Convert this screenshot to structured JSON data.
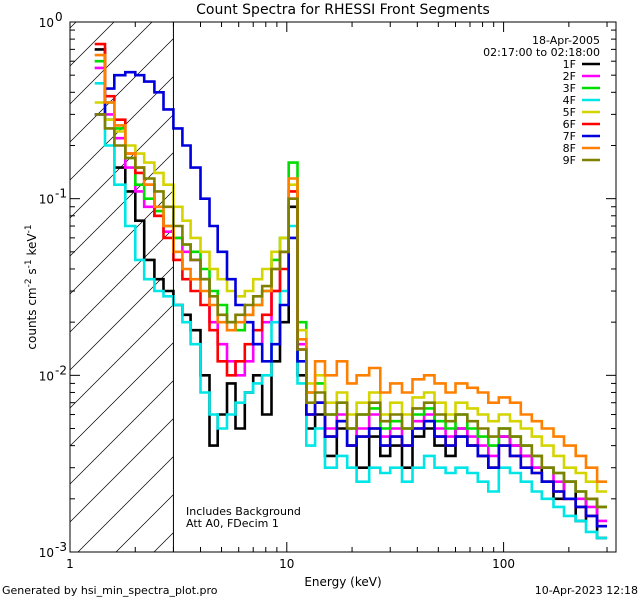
{
  "chart_data": {
    "type": "line",
    "title": "Count Spectra for RHESSI Front Segments",
    "xlabel": "Energy (keV)",
    "ylabel": "counts cm-2 s-1 keV-1",
    "xscale": "log",
    "yscale": "log",
    "xlim": [
      1,
      330
    ],
    "ylim": [
      0.001,
      1.0
    ],
    "x_ticks": [
      {
        "value": 1,
        "label": "1"
      },
      {
        "value": 10,
        "label": "10"
      },
      {
        "value": 100,
        "label": "100"
      }
    ],
    "y_ticks": [
      {
        "value": 1,
        "label": "10",
        "exp": "0"
      },
      {
        "value": 0.1,
        "label": "10",
        "exp": "-1"
      },
      {
        "value": 0.01,
        "label": "10",
        "exp": "-2"
      },
      {
        "value": 0.001,
        "label": "10",
        "exp": "-3"
      }
    ],
    "date": "18-Apr-2005",
    "time_range": "02:17:00 to 02:18:00",
    "annotations": [
      "Includes Background",
      "Att A0, FDecim 1"
    ],
    "hatch_region_keV": [
      1,
      3
    ],
    "footer_left": "Generated by hsi_min_spectra_plot.pro",
    "footer_right": "10-Apr-2023 12:18",
    "series": [
      {
        "name": "1F",
        "color": "#000000",
        "edges": [
          1.3,
          1.45,
          1.6,
          1.8,
          2.0,
          2.2,
          2.45,
          2.7,
          3.0,
          3.3,
          3.6,
          4.0,
          4.4,
          4.8,
          5.3,
          5.8,
          6.4,
          7.0,
          7.7,
          8.5,
          9.3,
          10.2,
          11.2,
          12.3,
          13.5,
          15,
          17,
          19,
          21,
          24,
          27,
          30,
          34,
          38,
          43,
          48,
          54,
          60,
          68,
          76,
          85,
          95,
          107,
          120,
          135,
          150,
          170,
          190,
          215,
          240,
          270,
          300
        ],
        "values": [
          0.7,
          0.28,
          0.15,
          0.11,
          0.075,
          0.045,
          0.035,
          0.03,
          0.025,
          0.022,
          0.018,
          0.01,
          0.004,
          0.006,
          0.009,
          0.005,
          0.008,
          0.01,
          0.006,
          0.012,
          0.02,
          0.09,
          0.01,
          0.005,
          0.006,
          0.0035,
          0.005,
          0.004,
          0.003,
          0.0045,
          0.0035,
          0.004,
          0.003,
          0.0045,
          0.005,
          0.004,
          0.0035,
          0.005,
          0.004,
          0.0035,
          0.003,
          0.0045,
          0.004,
          0.0035,
          0.003,
          0.0025,
          0.002,
          0.0025,
          0.0015,
          0.002,
          0.0012
        ]
      },
      {
        "name": "2F",
        "color": "#ff00ff",
        "edges": [
          1.3,
          1.45,
          1.6,
          1.8,
          2.0,
          2.2,
          2.45,
          2.7,
          3.0,
          3.3,
          3.6,
          4.0,
          4.4,
          4.8,
          5.3,
          5.8,
          6.4,
          7.0,
          7.7,
          8.5,
          9.3,
          10.2,
          11.2,
          12.3,
          13.5,
          15,
          17,
          19,
          21,
          24,
          27,
          30,
          34,
          38,
          43,
          48,
          54,
          60,
          68,
          76,
          85,
          95,
          107,
          120,
          135,
          150,
          170,
          190,
          215,
          240,
          270,
          300
        ],
        "values": [
          0.55,
          0.3,
          0.22,
          0.15,
          0.11,
          0.09,
          0.08,
          0.065,
          0.06,
          0.05,
          0.045,
          0.035,
          0.02,
          0.015,
          0.012,
          0.01,
          0.012,
          0.015,
          0.02,
          0.03,
          0.05,
          0.1,
          0.015,
          0.006,
          0.007,
          0.005,
          0.006,
          0.004,
          0.005,
          0.006,
          0.0045,
          0.005,
          0.004,
          0.0055,
          0.006,
          0.005,
          0.0045,
          0.005,
          0.0045,
          0.004,
          0.0035,
          0.0045,
          0.004,
          0.0035,
          0.003,
          0.003,
          0.0025,
          0.002,
          0.002,
          0.0018,
          0.0015
        ]
      },
      {
        "name": "3F",
        "color": "#00dd00",
        "edges": [
          1.3,
          1.45,
          1.6,
          1.8,
          2.0,
          2.2,
          2.45,
          2.7,
          3.0,
          3.3,
          3.6,
          4.0,
          4.4,
          4.8,
          5.3,
          5.8,
          6.4,
          7.0,
          7.7,
          8.5,
          9.3,
          10.2,
          11.2,
          12.3,
          13.5,
          15,
          17,
          19,
          21,
          24,
          27,
          30,
          34,
          38,
          43,
          48,
          54,
          60,
          68,
          76,
          85,
          95,
          107,
          120,
          135,
          150,
          170,
          190,
          215,
          240,
          270,
          300
        ],
        "values": [
          0.6,
          0.35,
          0.25,
          0.17,
          0.12,
          0.1,
          0.085,
          0.07,
          0.06,
          0.055,
          0.05,
          0.04,
          0.03,
          0.025,
          0.02,
          0.018,
          0.022,
          0.025,
          0.03,
          0.045,
          0.06,
          0.16,
          0.02,
          0.008,
          0.009,
          0.006,
          0.007,
          0.005,
          0.006,
          0.0065,
          0.005,
          0.0055,
          0.005,
          0.006,
          0.0065,
          0.0055,
          0.005,
          0.006,
          0.005,
          0.0045,
          0.004,
          0.005,
          0.0045,
          0.004,
          0.0035,
          0.003,
          0.0028,
          0.0025,
          0.0022,
          0.002,
          0.0018
        ]
      },
      {
        "name": "4F",
        "color": "#00e5e5",
        "edges": [
          1.3,
          1.45,
          1.6,
          1.8,
          2.0,
          2.2,
          2.45,
          2.7,
          3.0,
          3.3,
          3.6,
          4.0,
          4.4,
          4.8,
          5.3,
          5.8,
          6.4,
          7.0,
          7.7,
          8.5,
          9.3,
          10.2,
          11.2,
          12.3,
          13.5,
          15,
          17,
          19,
          21,
          24,
          27,
          30,
          34,
          38,
          43,
          48,
          54,
          60,
          68,
          76,
          85,
          95,
          107,
          120,
          135,
          150,
          170,
          190,
          215,
          240,
          270,
          300
        ],
        "values": [
          0.45,
          0.2,
          0.12,
          0.07,
          0.045,
          0.035,
          0.03,
          0.028,
          0.025,
          0.02,
          0.015,
          0.008,
          0.006,
          0.005,
          0.006,
          0.007,
          0.008,
          0.009,
          0.01,
          0.02,
          0.03,
          0.07,
          0.009,
          0.004,
          0.005,
          0.003,
          0.0035,
          0.003,
          0.0025,
          0.003,
          0.0028,
          0.003,
          0.0025,
          0.003,
          0.0035,
          0.003,
          0.0028,
          0.003,
          0.0028,
          0.0025,
          0.0022,
          0.003,
          0.0028,
          0.0025,
          0.0022,
          0.002,
          0.0018,
          0.0016,
          0.0015,
          0.0013,
          0.0012
        ]
      },
      {
        "name": "5F",
        "color": "#d4d400",
        "edges": [
          1.3,
          1.45,
          1.6,
          1.8,
          2.0,
          2.2,
          2.45,
          2.7,
          3.0,
          3.3,
          3.6,
          4.0,
          4.4,
          4.8,
          5.3,
          5.8,
          6.4,
          7.0,
          7.7,
          8.5,
          9.3,
          10.2,
          11.2,
          12.3,
          13.5,
          15,
          17,
          19,
          21,
          24,
          27,
          30,
          34,
          38,
          43,
          48,
          54,
          60,
          68,
          76,
          85,
          95,
          107,
          120,
          135,
          150,
          170,
          190,
          215,
          240,
          270,
          300
        ],
        "values": [
          0.35,
          0.28,
          0.24,
          0.2,
          0.18,
          0.16,
          0.14,
          0.12,
          0.09,
          0.075,
          0.06,
          0.05,
          0.04,
          0.035,
          0.03,
          0.028,
          0.03,
          0.035,
          0.04,
          0.05,
          0.06,
          0.12,
          0.018,
          0.009,
          0.01,
          0.007,
          0.008,
          0.006,
          0.007,
          0.008,
          0.006,
          0.007,
          0.006,
          0.0075,
          0.008,
          0.007,
          0.006,
          0.007,
          0.0065,
          0.006,
          0.0055,
          0.006,
          0.0055,
          0.005,
          0.0045,
          0.004,
          0.0035,
          0.003,
          0.0028,
          0.0025,
          0.0022
        ]
      },
      {
        "name": "6F",
        "color": "#ff0000",
        "edges": [
          1.3,
          1.45,
          1.6,
          1.8,
          2.0,
          2.2,
          2.45,
          2.7,
          3.0,
          3.3,
          3.6,
          4.0,
          4.4,
          4.8,
          5.3,
          5.8,
          6.4,
          7.0,
          7.7,
          8.5,
          9.3,
          10.2,
          11.2,
          12.3,
          13.5,
          15,
          17,
          19,
          21,
          24,
          27,
          30,
          34,
          38,
          43,
          48,
          54,
          60,
          68,
          76,
          85,
          95,
          107,
          120,
          135,
          150,
          170,
          190,
          215,
          240,
          270,
          300
        ],
        "values": [
          0.75,
          0.38,
          0.28,
          0.18,
          0.14,
          0.12,
          0.08,
          0.06,
          0.045,
          0.035,
          0.03,
          0.025,
          0.018,
          0.012,
          0.01,
          0.012,
          0.015,
          0.018,
          0.022,
          0.03,
          0.04,
          0.11,
          0.014,
          0.006,
          0.007,
          0.0045,
          0.0055,
          0.004,
          0.0045,
          0.005,
          0.004,
          0.0045,
          0.004,
          0.005,
          0.0055,
          0.0045,
          0.004,
          0.0045,
          0.004,
          0.0035,
          0.003,
          0.004,
          0.0035,
          0.003,
          0.0028,
          0.0025,
          0.0022,
          0.002,
          0.0018,
          0.0016,
          0.0014
        ]
      },
      {
        "name": "7F",
        "color": "#0000dd",
        "edges": [
          1.3,
          1.45,
          1.6,
          1.8,
          2.0,
          2.2,
          2.45,
          2.7,
          3.0,
          3.3,
          3.6,
          4.0,
          4.4,
          4.8,
          5.3,
          5.8,
          6.4,
          7.0,
          7.7,
          8.5,
          9.3,
          10.2,
          11.2,
          12.3,
          13.5,
          15,
          17,
          19,
          21,
          24,
          27,
          30,
          34,
          38,
          43,
          48,
          54,
          60,
          68,
          76,
          85,
          95,
          107,
          120,
          135,
          150,
          170,
          190,
          215,
          240,
          270,
          300
        ],
        "values": [
          0.3,
          0.42,
          0.5,
          0.52,
          0.5,
          0.46,
          0.4,
          0.32,
          0.25,
          0.2,
          0.15,
          0.1,
          0.07,
          0.05,
          0.035,
          0.025,
          0.02,
          0.015,
          0.012,
          0.015,
          0.025,
          0.06,
          0.012,
          0.006,
          0.007,
          0.0045,
          0.0055,
          0.004,
          0.0045,
          0.005,
          0.004,
          0.0045,
          0.004,
          0.005,
          0.0055,
          0.0045,
          0.004,
          0.0045,
          0.004,
          0.0035,
          0.003,
          0.004,
          0.0035,
          0.003,
          0.0028,
          0.0025,
          0.0022,
          0.002,
          0.0018,
          0.0016,
          0.0014
        ]
      },
      {
        "name": "8F",
        "color": "#ff8000",
        "edges": [
          1.3,
          1.45,
          1.6,
          1.8,
          2.0,
          2.2,
          2.45,
          2.7,
          3.0,
          3.3,
          3.6,
          4.0,
          4.4,
          4.8,
          5.3,
          5.8,
          6.4,
          7.0,
          7.7,
          8.5,
          9.3,
          10.2,
          11.2,
          12.3,
          13.5,
          15,
          17,
          19,
          21,
          24,
          27,
          30,
          34,
          38,
          43,
          48,
          54,
          60,
          68,
          76,
          85,
          95,
          107,
          120,
          135,
          150,
          170,
          190,
          215,
          240,
          270,
          300
        ],
        "values": [
          0.65,
          0.35,
          0.26,
          0.18,
          0.15,
          0.12,
          0.09,
          0.07,
          0.05,
          0.04,
          0.035,
          0.03,
          0.025,
          0.02,
          0.018,
          0.02,
          0.022,
          0.025,
          0.03,
          0.04,
          0.05,
          0.13,
          0.016,
          0.008,
          0.012,
          0.01,
          0.012,
          0.009,
          0.01,
          0.011,
          0.008,
          0.009,
          0.008,
          0.0095,
          0.01,
          0.009,
          0.008,
          0.009,
          0.0085,
          0.008,
          0.007,
          0.0075,
          0.007,
          0.006,
          0.0055,
          0.005,
          0.0045,
          0.004,
          0.0035,
          0.003,
          0.0025
        ]
      },
      {
        "name": "9F",
        "color": "#808000",
        "edges": [
          1.3,
          1.45,
          1.6,
          1.8,
          2.0,
          2.2,
          2.45,
          2.7,
          3.0,
          3.3,
          3.6,
          4.0,
          4.4,
          4.8,
          5.3,
          5.8,
          6.4,
          7.0,
          7.7,
          8.5,
          9.3,
          10.2,
          11.2,
          12.3,
          13.5,
          15,
          17,
          19,
          21,
          24,
          27,
          30,
          34,
          38,
          43,
          48,
          54,
          60,
          68,
          76,
          85,
          95,
          107,
          120,
          135,
          150,
          170,
          190,
          215,
          240,
          270,
          300
        ],
        "values": [
          0.3,
          0.25,
          0.2,
          0.17,
          0.15,
          0.13,
          0.11,
          0.09,
          0.07,
          0.055,
          0.045,
          0.035,
          0.028,
          0.022,
          0.02,
          0.022,
          0.025,
          0.028,
          0.032,
          0.04,
          0.05,
          0.1,
          0.014,
          0.007,
          0.008,
          0.006,
          0.007,
          0.005,
          0.006,
          0.007,
          0.0055,
          0.006,
          0.005,
          0.0065,
          0.007,
          0.006,
          0.0055,
          0.006,
          0.0055,
          0.005,
          0.0045,
          0.005,
          0.0045,
          0.004,
          0.0035,
          0.003,
          0.0028,
          0.0025,
          0.0022,
          0.002,
          0.0018
        ]
      }
    ]
  }
}
